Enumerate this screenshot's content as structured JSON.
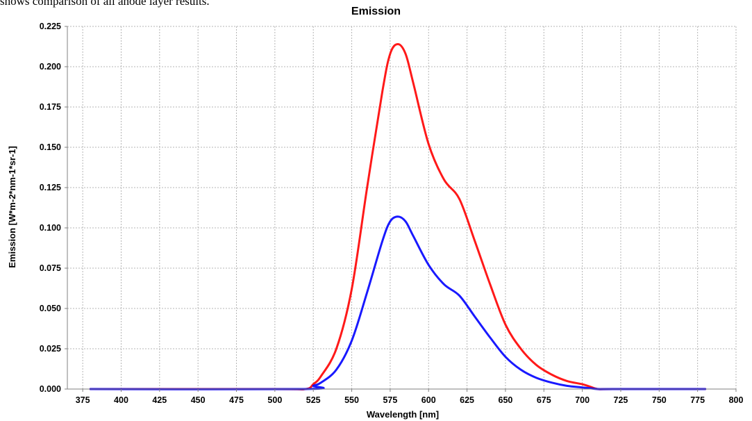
{
  "caption": "shows comparison of all anode layer results.",
  "chart_data": {
    "type": "line",
    "title": "Emission",
    "xlabel": "Wavelength [nm]",
    "ylabel": "Emission [W*m-2*nm-1*sr-1]",
    "xlim": [
      365,
      800
    ],
    "ylim": [
      0,
      0.225
    ],
    "x_ticks": [
      375,
      400,
      425,
      450,
      475,
      500,
      525,
      550,
      575,
      600,
      625,
      650,
      675,
      700,
      725,
      750,
      775,
      800
    ],
    "y_ticks": [
      "0.000",
      "0.025",
      "0.050",
      "0.075",
      "0.100",
      "0.125",
      "0.150",
      "0.175",
      "0.200",
      "0.225"
    ],
    "grid": true,
    "series": [
      {
        "color": "#ff0000",
        "x": [
          380,
          500,
          520,
          525,
          530,
          540,
          550,
          560,
          570,
          575,
          580,
          585,
          590,
          600,
          610,
          620,
          630,
          640,
          650,
          660,
          670,
          680,
          690,
          700,
          705,
          710,
          720,
          780
        ],
        "y": [
          0,
          0,
          0,
          0.003,
          0.008,
          0.025,
          0.062,
          0.125,
          0.185,
          0.208,
          0.214,
          0.208,
          0.19,
          0.152,
          0.13,
          0.118,
          0.092,
          0.065,
          0.04,
          0.025,
          0.015,
          0.009,
          0.005,
          0.003,
          0.0015,
          0,
          0,
          0
        ]
      },
      {
        "color": "#0000ff",
        "x": [
          380,
          520,
          525,
          530,
          540,
          550,
          560,
          570,
          575,
          580,
          585,
          590,
          600,
          610,
          620,
          630,
          640,
          650,
          660,
          670,
          680,
          690,
          700,
          705,
          710,
          720,
          780
        ],
        "y": [
          0,
          0,
          0.002,
          0.004,
          0.012,
          0.03,
          0.06,
          0.092,
          0.104,
          0.107,
          0.104,
          0.095,
          0.077,
          0.065,
          0.058,
          0.045,
          0.032,
          0.02,
          0.012,
          0.007,
          0.004,
          0.002,
          0.001,
          0.0005,
          0,
          0,
          0
        ]
      }
    ]
  }
}
